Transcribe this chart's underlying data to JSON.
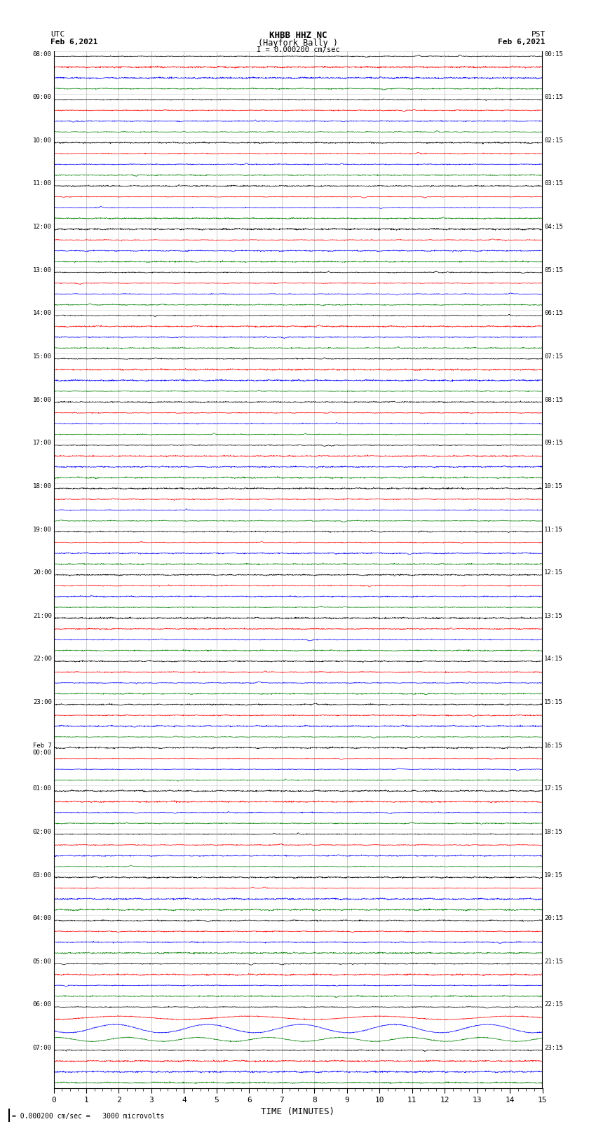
{
  "title_line1": "KHBB HHZ NC",
  "title_line2": "(Hayfork Bally )",
  "scale_text": "I = 0.000200 cm/sec",
  "left_label_top": "UTC",
  "left_label_date": "Feb 6,2021",
  "right_label_top": "PST",
  "right_label_date": "Feb 6,2021",
  "xlabel": "TIME (MINUTES)",
  "footer_text": "= 0.000200 cm/sec =   3000 microvolts",
  "utc_hour_labels": [
    "08:00",
    "09:00",
    "10:00",
    "11:00",
    "12:00",
    "13:00",
    "14:00",
    "15:00",
    "16:00",
    "17:00",
    "18:00",
    "19:00",
    "20:00",
    "21:00",
    "22:00",
    "23:00",
    "Feb 7\n00:00",
    "01:00",
    "02:00",
    "03:00",
    "04:00",
    "05:00",
    "06:00",
    "07:00"
  ],
  "pst_hour_labels": [
    "00:15",
    "01:15",
    "02:15",
    "03:15",
    "04:15",
    "05:15",
    "06:15",
    "07:15",
    "08:15",
    "09:15",
    "10:15",
    "11:15",
    "12:15",
    "13:15",
    "14:15",
    "15:15",
    "16:15",
    "17:15",
    "18:15",
    "19:15",
    "20:15",
    "21:15",
    "22:15",
    "23:15"
  ],
  "colors": [
    "black",
    "red",
    "blue",
    "green"
  ],
  "num_hours": 24,
  "traces_per_hour": 4,
  "minutes": 15,
  "background_color": "white",
  "font_family": "monospace",
  "large_oscillation_hour": 22,
  "large_oscillation_hour2": 23
}
